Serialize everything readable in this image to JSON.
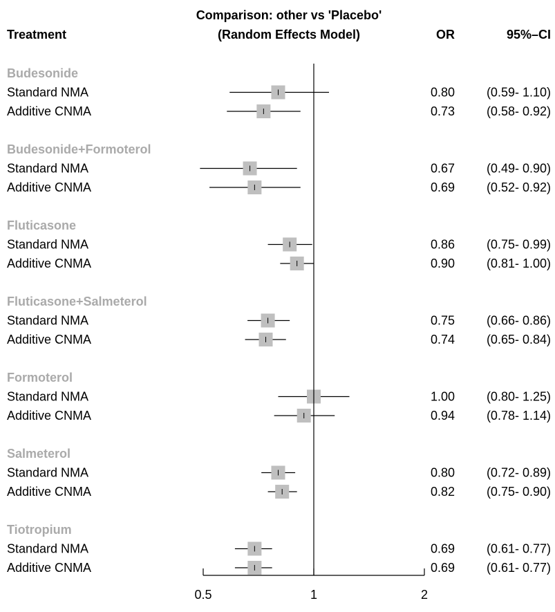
{
  "chart_data": {
    "type": "forest",
    "header": {
      "treatment": "Treatment",
      "comparison_line1": "Comparison: other vs 'Placebo'",
      "comparison_line2": "(Random Effects Model)",
      "or": "OR",
      "ci": "95%–CI"
    },
    "x_scale": "log",
    "xlim": [
      0.5,
      2
    ],
    "reference": 1,
    "ticks": [
      {
        "value": 0.5,
        "label": "0.5"
      },
      {
        "value": 1,
        "label": "1"
      },
      {
        "value": 2,
        "label": "2"
      }
    ],
    "colors": {
      "group_label": "#aaaaaa",
      "box": "#bfbfbf"
    },
    "groups": [
      {
        "name": "Budesonide",
        "rows": [
          {
            "label": "Standard NMA",
            "or": 0.8,
            "lo": 0.59,
            "hi": 1.1,
            "or_text": "0.80",
            "ci_text": "(0.59- 1.10)"
          },
          {
            "label": "Additive CNMA",
            "or": 0.73,
            "lo": 0.58,
            "hi": 0.92,
            "or_text": "0.73",
            "ci_text": "(0.58- 0.92)"
          }
        ]
      },
      {
        "name": "Budesonide+Formoterol",
        "rows": [
          {
            "label": "Standard NMA",
            "or": 0.67,
            "lo": 0.49,
            "hi": 0.9,
            "or_text": "0.67",
            "ci_text": "(0.49- 0.90)"
          },
          {
            "label": "Additive CNMA",
            "or": 0.69,
            "lo": 0.52,
            "hi": 0.92,
            "or_text": "0.69",
            "ci_text": "(0.52- 0.92)"
          }
        ]
      },
      {
        "name": "Fluticasone",
        "rows": [
          {
            "label": "Standard NMA",
            "or": 0.86,
            "lo": 0.75,
            "hi": 0.99,
            "or_text": "0.86",
            "ci_text": "(0.75- 0.99)"
          },
          {
            "label": "Additive CNMA",
            "or": 0.9,
            "lo": 0.81,
            "hi": 1.0,
            "or_text": "0.90",
            "ci_text": "(0.81- 1.00)"
          }
        ]
      },
      {
        "name": "Fluticasone+Salmeterol",
        "rows": [
          {
            "label": "Standard NMA",
            "or": 0.75,
            "lo": 0.66,
            "hi": 0.86,
            "or_text": "0.75",
            "ci_text": "(0.66- 0.86)"
          },
          {
            "label": "Additive CNMA",
            "or": 0.74,
            "lo": 0.65,
            "hi": 0.84,
            "or_text": "0.74",
            "ci_text": "(0.65- 0.84)"
          }
        ]
      },
      {
        "name": "Formoterol",
        "rows": [
          {
            "label": "Standard NMA",
            "or": 1.0,
            "lo": 0.8,
            "hi": 1.25,
            "or_text": "1.00",
            "ci_text": "(0.80- 1.25)"
          },
          {
            "label": "Additive CNMA",
            "or": 0.94,
            "lo": 0.78,
            "hi": 1.14,
            "or_text": "0.94",
            "ci_text": "(0.78- 1.14)"
          }
        ]
      },
      {
        "name": "Salmeterol",
        "rows": [
          {
            "label": "Standard NMA",
            "or": 0.8,
            "lo": 0.72,
            "hi": 0.89,
            "or_text": "0.80",
            "ci_text": "(0.72- 0.89)"
          },
          {
            "label": "Additive CNMA",
            "or": 0.82,
            "lo": 0.75,
            "hi": 0.9,
            "or_text": "0.82",
            "ci_text": "(0.75- 0.90)"
          }
        ]
      },
      {
        "name": "Tiotropium",
        "rows": [
          {
            "label": "Standard NMA",
            "or": 0.69,
            "lo": 0.61,
            "hi": 0.77,
            "or_text": "0.69",
            "ci_text": "(0.61- 0.77)"
          },
          {
            "label": "Additive CNMA",
            "or": 0.69,
            "lo": 0.61,
            "hi": 0.77,
            "or_text": "0.69",
            "ci_text": "(0.61- 0.77)"
          }
        ]
      }
    ]
  }
}
